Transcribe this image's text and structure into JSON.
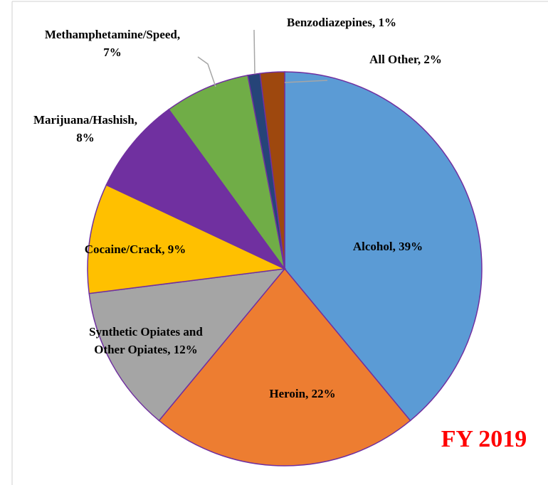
{
  "chart_data": {
    "type": "pie",
    "values": [
      39,
      22,
      12,
      9,
      8,
      7,
      1,
      2
    ],
    "value_labels": [
      [
        "Alcohol, 39%"
      ],
      [
        "Heroin, 22%"
      ],
      [
        "Synthetic Opiates and",
        "Other Opiates, 12%"
      ],
      [
        "Cocaine/Crack, 9%"
      ],
      [
        "Marijuana/Hashish,",
        "8%"
      ],
      [
        "Methamphetamine/Speed,",
        "7%"
      ],
      [
        "Benzodiazepines, 1%"
      ],
      [
        "All Other, 2%"
      ]
    ],
    "colors": [
      "#5b9bd5",
      "#ed7d31",
      "#a5a5a5",
      "#ffc000",
      "#7030a0",
      "#70ad47",
      "#264478",
      "#9e480e"
    ],
    "annotation": "FY 2019"
  }
}
